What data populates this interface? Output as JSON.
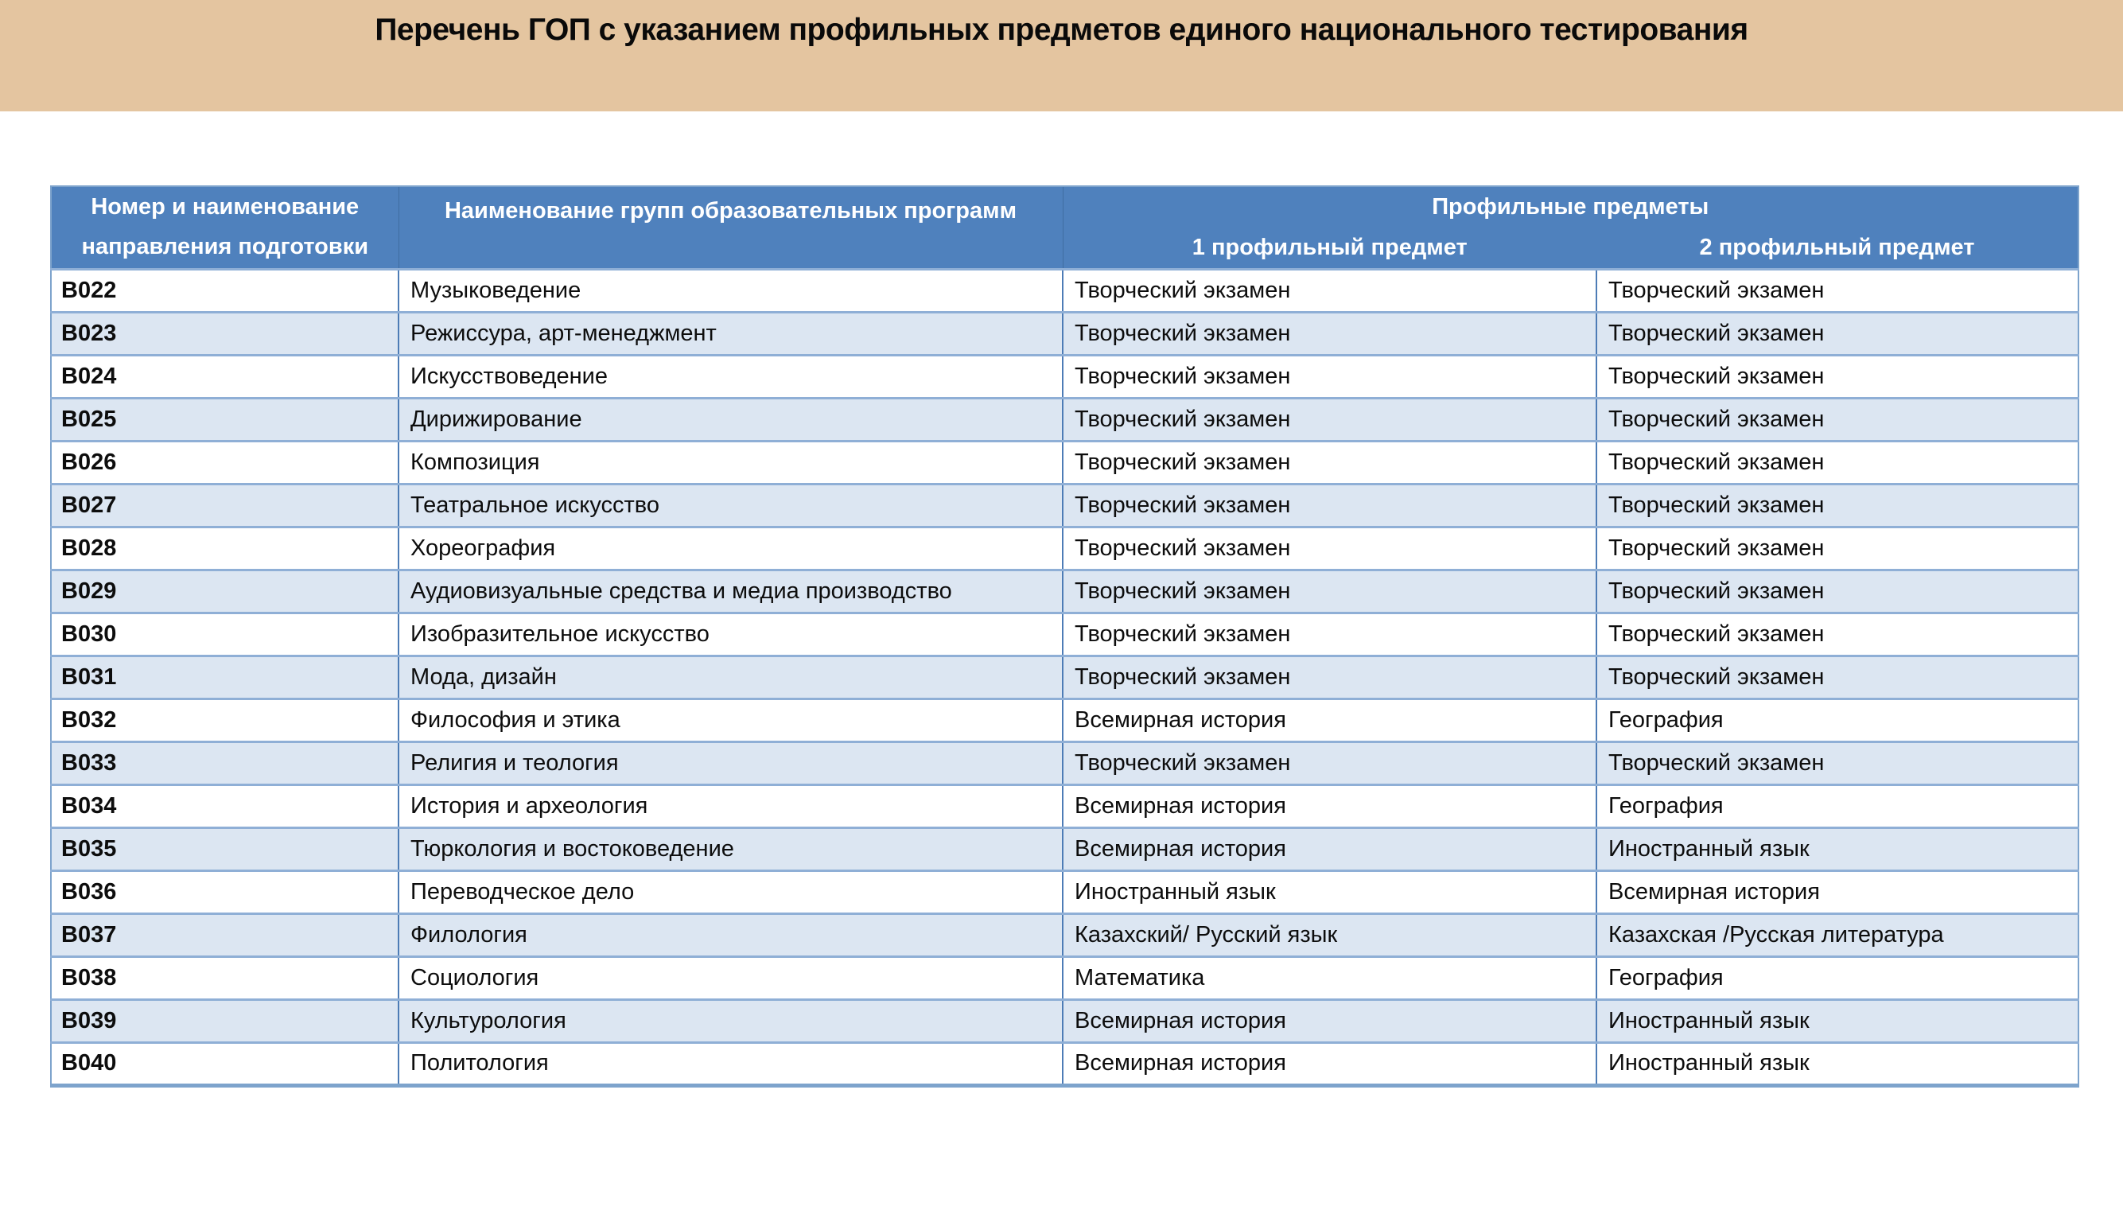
{
  "title": "Перечень ГОП с указанием профильных предметов единого национального тестирования",
  "colors": {
    "banner_bg": "#e4c5a0",
    "header_bg": "#4f81bd",
    "row_alt": "#dce6f2",
    "border_vertical": "#4d7cb6",
    "border_horizontal": "#8fafd6",
    "border_outer": "#7da3cc"
  },
  "table": {
    "col1_header": "Номер и наименование направления подготовки",
    "col2_header": "Наименование групп образовательных программ",
    "group_header": "Профильные предметы",
    "sub1_header": "1 профильный предмет",
    "sub2_header": "2 профильный предмет",
    "rows": [
      {
        "code": "B022",
        "program": "Музыковедение",
        "subject1": "Творческий экзамен",
        "subject2": "Творческий экзамен"
      },
      {
        "code": "B023",
        "program": "Режиссура, арт-менеджмент",
        "subject1": "Творческий экзамен",
        "subject2": "Творческий экзамен"
      },
      {
        "code": "B024",
        "program": "Искусствоведение",
        "subject1": "Творческий экзамен",
        "subject2": "Творческий экзамен"
      },
      {
        "code": "B025",
        "program": "Дирижирование",
        "subject1": "Творческий экзамен",
        "subject2": "Творческий экзамен"
      },
      {
        "code": "B026",
        "program": "Композиция",
        "subject1": "Творческий экзамен",
        "subject2": "Творческий экзамен"
      },
      {
        "code": "B027",
        "program": "Театральное искусство",
        "subject1": "Творческий экзамен",
        "subject2": "Творческий экзамен"
      },
      {
        "code": "B028",
        "program": "Хореография",
        "subject1": "Творческий экзамен",
        "subject2": "Творческий экзамен"
      },
      {
        "code": "B029",
        "program": "Аудиовизуальные средства и медиа производство",
        "subject1": "Творческий экзамен",
        "subject2": "Творческий экзамен"
      },
      {
        "code": "B030",
        "program": "Изобразительное искусство",
        "subject1": "Творческий экзамен",
        "subject2": "Творческий экзамен"
      },
      {
        "code": "B031",
        "program": "Мода, дизайн",
        "subject1": "Творческий экзамен",
        "subject2": "Творческий экзамен"
      },
      {
        "code": "B032",
        "program": "Философия и этика",
        "subject1": "Всемирная история",
        "subject2": "География"
      },
      {
        "code": "B033",
        "program": "Религия и теология",
        "subject1": "Творческий экзамен",
        "subject2": "Творческий экзамен"
      },
      {
        "code": "B034",
        "program": "История и археология",
        "subject1": "Всемирная история",
        "subject2": "География"
      },
      {
        "code": "B035",
        "program": "Тюркология и востоковедение",
        "subject1": "Всемирная история",
        "subject2": "Иностранный язык"
      },
      {
        "code": "B036",
        "program": "Переводческое дело",
        "subject1": "Иностранный язык",
        "subject2": "Всемирная история"
      },
      {
        "code": "B037",
        "program": "Филология",
        "subject1": "Казахский/ Русский язык",
        "subject2": "Казахская /Русская литература"
      },
      {
        "code": "B038",
        "program": "Социология",
        "subject1": "Математика",
        "subject2": "География"
      },
      {
        "code": "B039",
        "program": "Культурология",
        "subject1": "Всемирная история",
        "subject2": "Иностранный язык"
      },
      {
        "code": "B040",
        "program": "Политология",
        "subject1": "Всемирная история",
        "subject2": "Иностранный язык"
      }
    ]
  }
}
